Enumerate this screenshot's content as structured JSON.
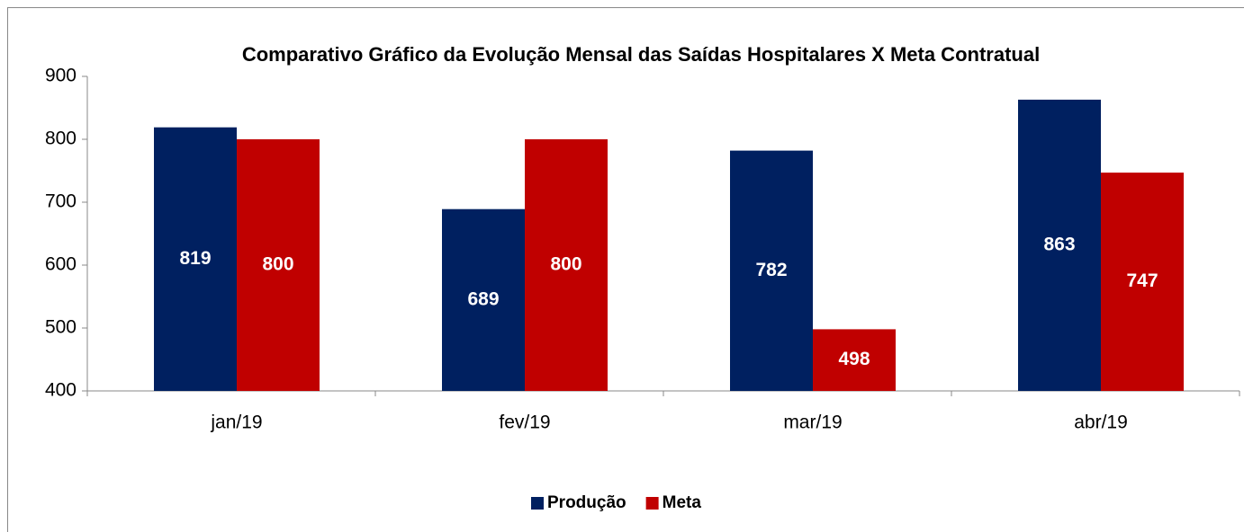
{
  "chart_data": {
    "type": "bar",
    "title": "Comparativo Gráfico da Evolução Mensal das Saídas Hospitalares X Meta Contratual",
    "categories": [
      "jan/19",
      "fev/19",
      "mar/19",
      "abr/19"
    ],
    "series": [
      {
        "name": "Produção",
        "color": "#002060",
        "values": [
          819,
          689,
          782,
          863
        ]
      },
      {
        "name": "Meta",
        "color": "#c00000",
        "values": [
          800,
          800,
          498,
          747
        ]
      }
    ],
    "ylim": [
      400,
      900
    ],
    "yticks": [
      400,
      500,
      600,
      700,
      800,
      900
    ],
    "legend": "bottom"
  }
}
